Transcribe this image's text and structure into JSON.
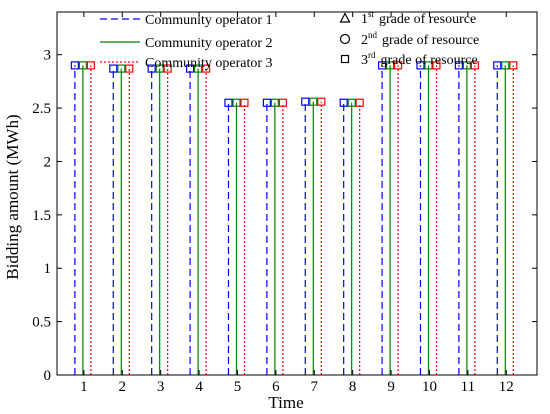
{
  "chart_data": {
    "type": "stem",
    "xlabel": "Time",
    "ylabel": "Bidding amount (MWh)",
    "ylim": [
      0,
      3.4
    ],
    "yticks": [
      "0",
      "0.5",
      "1",
      "1.5",
      "2",
      "2.5",
      "3"
    ],
    "categories": [
      "1",
      "2",
      "3",
      "4",
      "5",
      "6",
      "7",
      "8",
      "9",
      "10",
      "11",
      "12"
    ],
    "series": [
      {
        "name": "Community operator 1",
        "color": "#0000ff",
        "line_style": "dashed",
        "values": [
          2.9,
          2.87,
          2.87,
          2.87,
          2.55,
          2.55,
          2.56,
          2.55,
          2.9,
          2.9,
          2.9,
          2.9
        ]
      },
      {
        "name": "Community operator 2",
        "color": "#008000",
        "line_style": "solid",
        "values": [
          2.9,
          2.87,
          2.87,
          2.87,
          2.55,
          2.55,
          2.56,
          2.55,
          2.9,
          2.9,
          2.9,
          2.9
        ]
      },
      {
        "name": "Community operator 3",
        "color": "#ff0000",
        "line_style": "dotted",
        "values": [
          2.9,
          2.87,
          2.87,
          2.87,
          2.55,
          2.55,
          2.56,
          2.55,
          2.9,
          2.9,
          2.9,
          2.9
        ]
      }
    ],
    "marker_legend": [
      {
        "marker": "triangle",
        "ordinal": "1",
        "sup": "st",
        "text": "grade of resource"
      },
      {
        "marker": "circle",
        "ordinal": "2",
        "sup": "nd",
        "text": "grade of resource"
      },
      {
        "marker": "square",
        "ordinal": "3",
        "sup": "rd",
        "text": "grade of resource"
      }
    ],
    "stem_marker": "square",
    "grid": false,
    "legend_position": "top"
  }
}
